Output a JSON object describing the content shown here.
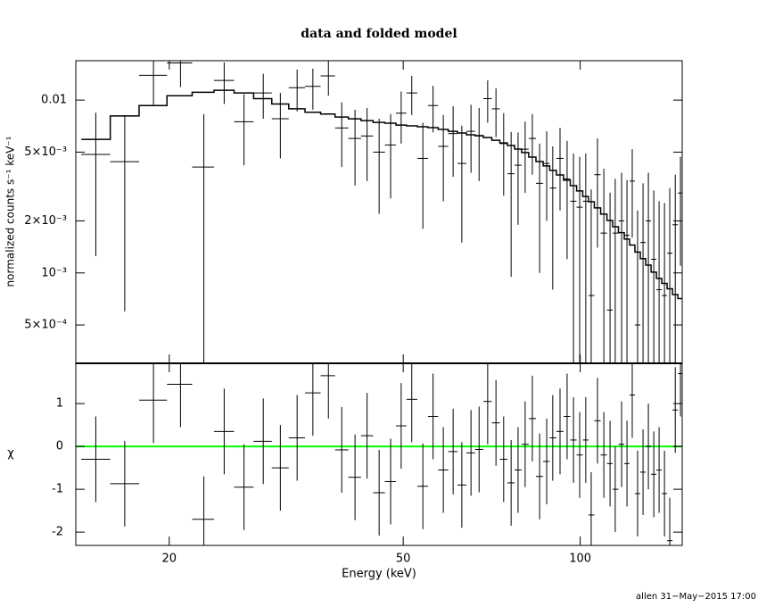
{
  "chart_data": [
    {
      "type": "step_errorbar",
      "title": "data and folded model",
      "ylabel": "normalized counts s⁻¹ keV⁻¹",
      "log_x": true,
      "log_y": true,
      "color": "#000000",
      "xlim": [
        13.87,
        149.1
      ],
      "ylim": [
        0.0003,
        0.0169
      ],
      "yticks": [
        {
          "value": 0.01,
          "label": "0.01"
        },
        {
          "value": 0.005,
          "label": "5×10⁻³"
        },
        {
          "value": 0.002,
          "label": "2×10⁻³"
        },
        {
          "value": 0.001,
          "label": "10⁻³"
        },
        {
          "value": 0.0005,
          "label": "5×10⁻⁴"
        }
      ],
      "x": [
        15.0,
        16.8,
        18.8,
        20.9,
        22.9,
        24.8,
        26.8,
        28.9,
        30.9,
        33.0,
        35.1,
        37.3,
        39.3,
        41.4,
        43.4,
        45.5,
        47.6,
        49.6,
        51.7,
        54.0,
        56.2,
        58.5,
        60.8,
        62.9,
        65.2,
        67.3,
        69.6,
        71.9,
        74.1,
        76.3,
        78.4,
        80.6,
        82.9,
        85.3,
        87.7,
        89.8,
        92.4,
        95.0,
        97.4,
        99.8,
        102.2,
        104.4,
        107.0,
        109.7,
        112.4,
        114.7,
        117.6,
        120.1,
        122.6,
        125.2,
        127.9,
        130.6,
        133.4,
        136.2,
        139.1,
        142.0,
        145.1,
        148.1
      ],
      "values": [
        0.00485,
        0.0044,
        0.0139,
        0.0164,
        0.0041,
        0.013,
        0.0075,
        0.011,
        0.0078,
        0.0118,
        0.012,
        0.0138,
        0.0069,
        0.006,
        0.0062,
        0.005,
        0.0055,
        0.0084,
        0.011,
        0.0046,
        0.0093,
        0.0054,
        0.0064,
        0.0043,
        0.0066,
        0.0062,
        0.0102,
        0.0089,
        0.0056,
        0.00375,
        0.0042,
        0.0052,
        0.006,
        0.0033,
        0.0043,
        0.0031,
        0.0046,
        0.0035,
        0.0026,
        0.0024,
        0.0026,
        0.00074,
        0.0037,
        0.0017,
        0.00061,
        0.0017,
        0.002,
        0.00165,
        0.0034,
        0.0005,
        0.0015,
        0.002,
        0.0012,
        0.0008,
        0.00074,
        0.0013,
        0.0019,
        0.0029
      ],
      "errors": [
        0.0036,
        0.0038,
        0.0045,
        0.0045,
        0.0042,
        0.0035,
        0.0033,
        0.0032,
        0.0032,
        0.0032,
        0.0032,
        0.0032,
        0.0028,
        0.0028,
        0.0028,
        0.0028,
        0.0028,
        0.0028,
        0.0028,
        0.0028,
        0.0028,
        0.0028,
        0.0028,
        0.0028,
        0.0028,
        0.0028,
        0.0028,
        0.0028,
        0.0028,
        0.0028,
        0.0023,
        0.0023,
        0.0023,
        0.0023,
        0.0023,
        0.0023,
        0.0023,
        0.0023,
        0.0023,
        0.0023,
        0.0023,
        0.0023,
        0.0023,
        0.0023,
        0.0023,
        0.0018,
        0.0018,
        0.0018,
        0.0018,
        0.0018,
        0.0018,
        0.0018,
        0.0018,
        0.0018,
        0.0018,
        0.0018,
        0.0018,
        0.0018
      ],
      "model": [
        0.00593,
        0.0081,
        0.0093,
        0.0106,
        0.0111,
        0.0114,
        0.011,
        0.0102,
        0.0095,
        0.0089,
        0.0085,
        0.0083,
        0.00798,
        0.00779,
        0.00761,
        0.00743,
        0.00735,
        0.00717,
        0.00709,
        0.00701,
        0.00693,
        0.00676,
        0.0066,
        0.00645,
        0.0063,
        0.00622,
        0.00607,
        0.00586,
        0.00565,
        0.00546,
        0.00521,
        0.00497,
        0.00468,
        0.00441,
        0.00416,
        0.00392,
        0.00369,
        0.00344,
        0.0032,
        0.00298,
        0.00277,
        0.00258,
        0.00238,
        0.00219,
        0.00201,
        0.00185,
        0.00171,
        0.00157,
        0.00145,
        0.00132,
        0.00121,
        0.00111,
        0.00101,
        0.00093,
        0.00087,
        0.00081,
        0.00075,
        0.00071
      ]
    },
    {
      "type": "residual",
      "xlabel": "Energy (keV)",
      "ylabel": "χ",
      "color": "#000000",
      "xticks": [
        20,
        50,
        100
      ],
      "ylim": [
        -2.31,
        1.94
      ],
      "yticks": [
        -2,
        -1,
        0,
        1
      ],
      "error": 1,
      "zero_line": 0,
      "zero_color": "#00ff00",
      "values": [
        -0.3,
        -0.87,
        1.08,
        1.45,
        -1.7,
        0.35,
        -0.95,
        0.12,
        -0.5,
        0.2,
        1.25,
        1.65,
        -0.08,
        -0.72,
        0.25,
        -1.08,
        -0.82,
        0.48,
        1.1,
        -0.93,
        0.7,
        -0.55,
        -0.12,
        -0.9,
        -0.15,
        -0.07,
        1.05,
        0.55,
        -0.3,
        -0.85,
        -0.55,
        0.05,
        0.65,
        -0.7,
        -0.35,
        0.2,
        0.35,
        0.7,
        0.15,
        -0.2,
        0.15,
        -1.6,
        0.6,
        -0.2,
        -0.4,
        -1.0,
        0.05,
        -0.4,
        1.2,
        -1.1,
        -0.6,
        0.0,
        -0.65,
        -0.55,
        -1.1,
        -2.2,
        0.85,
        1.7
      ]
    }
  ],
  "footer": "allen 31−May−2015 17:00"
}
